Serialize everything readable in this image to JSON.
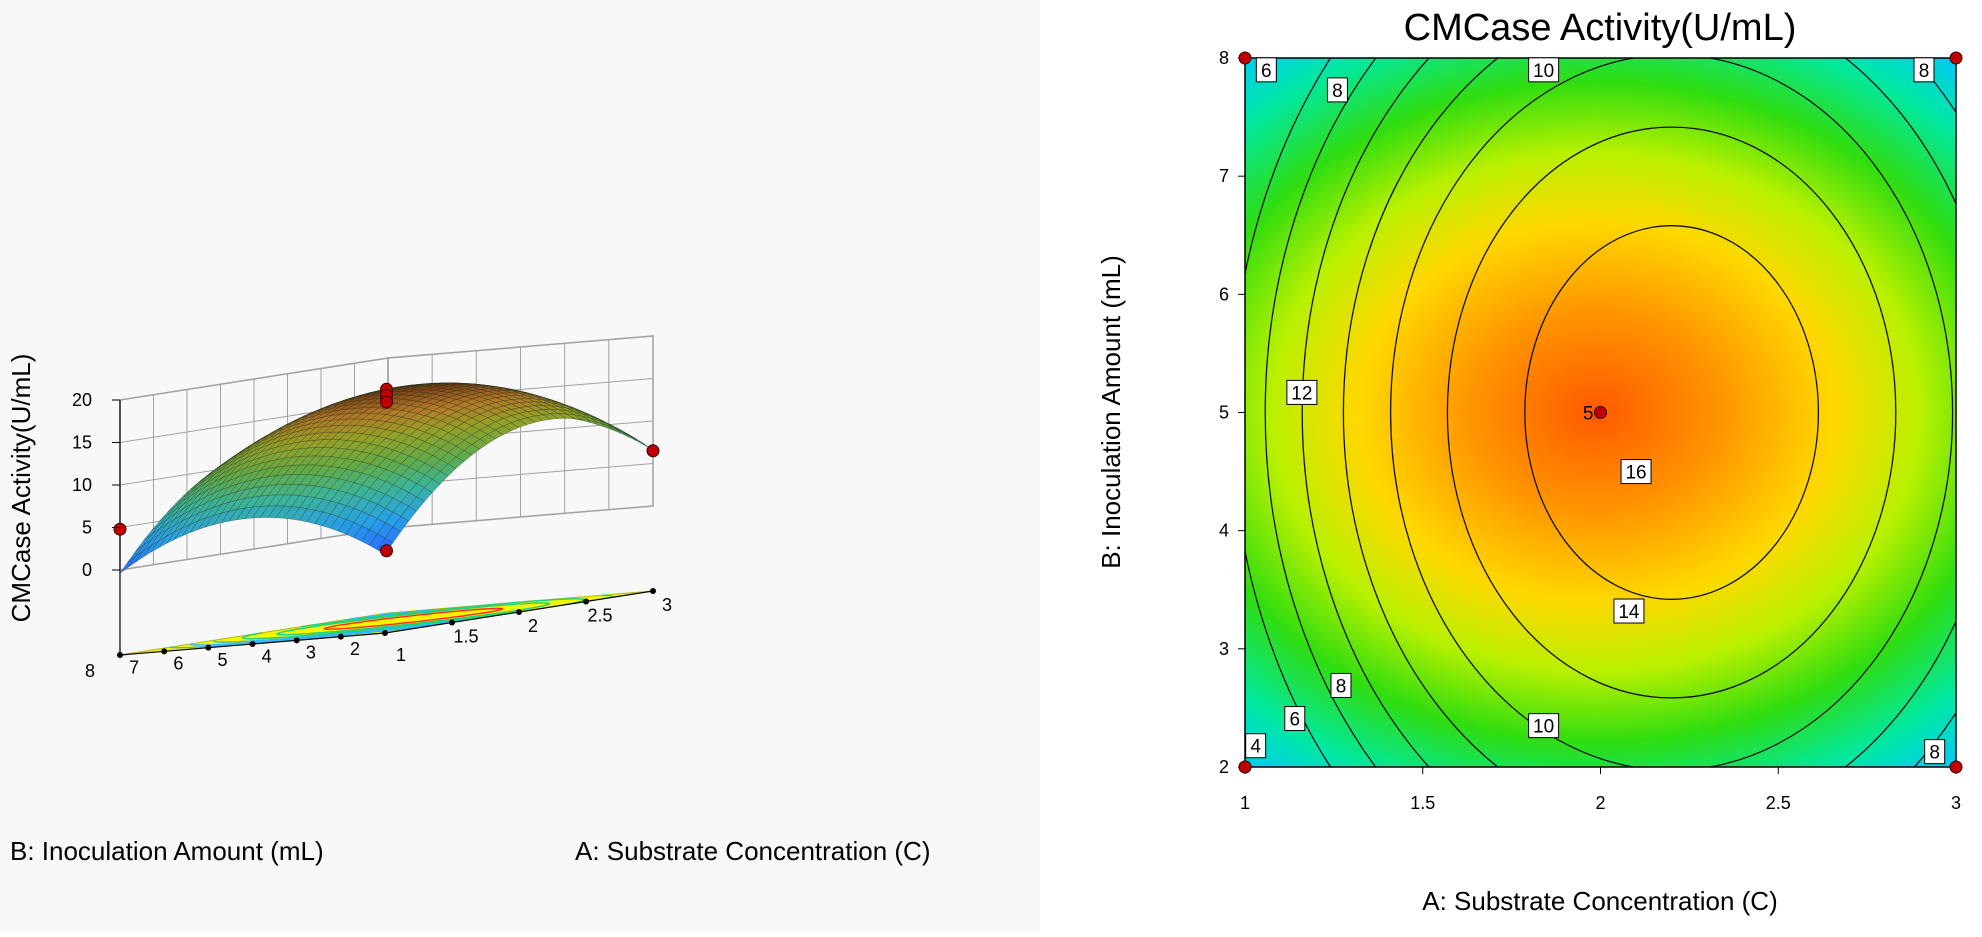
{
  "colors": {
    "background_left": "#f8f8f8",
    "grid_line": "#a0a0a0",
    "floor_fill": "#f6f500",
    "design_point": "#c00000",
    "contour_line": "#111111",
    "palette": [
      "#0050ff",
      "#00c8ff",
      "#00e070",
      "#40e000",
      "#e8ff00",
      "#ffb000",
      "#ff5a00"
    ]
  },
  "chart_data": [
    {
      "type": "surface",
      "title": "",
      "xlabel": "A: Substrate Concentration (C)",
      "ylabel": "B: Inoculation Amount (mL)",
      "zlabel": "CMCase Activity(U/mL)",
      "x_range": [
        1,
        3
      ],
      "y_range": [
        2,
        8
      ],
      "z_range": [
        0,
        20
      ],
      "x_ticks": [
        "1",
        "1.5",
        "2",
        "2.5",
        "3"
      ],
      "y_ticks": [
        "2",
        "3",
        "4",
        "5",
        "6",
        "7",
        "8"
      ],
      "z_ticks": [
        "0",
        "5",
        "10",
        "15",
        "20"
      ],
      "floor_contour_levels": [
        6,
        8,
        10,
        12,
        14,
        16
      ],
      "model": "quadratic response surface",
      "peak": {
        "x": 2.2,
        "y": 5.0,
        "z": 17.5
      },
      "design_points": [
        {
          "x": 2,
          "y": 5,
          "z": 17.5
        },
        {
          "x": 2,
          "y": 5,
          "z": 16.8
        },
        {
          "x": 2,
          "y": 5,
          "z": 16.0
        },
        {
          "x": 1,
          "y": 8,
          "z": 4.8
        },
        {
          "x": 3,
          "y": 2,
          "z": 6.5
        },
        {
          "x": 2,
          "y": 5,
          "z": -1.5
        }
      ]
    },
    {
      "type": "contour",
      "title": "CMCase Activity(U/mL)",
      "xlabel": "A: Substrate Concentration (C)",
      "ylabel": "B: Inoculation Amount (mL)",
      "x_range": [
        1,
        3
      ],
      "y_range": [
        2,
        8
      ],
      "x_ticks": [
        "1",
        "1.5",
        "2",
        "2.5",
        "3"
      ],
      "y_ticks": [
        "2",
        "3",
        "4",
        "5",
        "6",
        "7",
        "8"
      ],
      "contour_levels": [
        4,
        6,
        8,
        10,
        12,
        14,
        16
      ],
      "contour_labels": [
        {
          "text": "6",
          "x": 1.06,
          "y": 7.9
        },
        {
          "text": "8",
          "x": 1.26,
          "y": 7.73
        },
        {
          "text": "10",
          "x": 1.84,
          "y": 7.9
        },
        {
          "text": "8",
          "x": 2.91,
          "y": 7.9
        },
        {
          "text": "12",
          "x": 1.16,
          "y": 5.17
        },
        {
          "text": "16",
          "x": 2.1,
          "y": 4.5
        },
        {
          "text": "14",
          "x": 2.08,
          "y": 3.32
        },
        {
          "text": "8",
          "x": 1.27,
          "y": 2.69
        },
        {
          "text": "6",
          "x": 1.14,
          "y": 2.41
        },
        {
          "text": "10",
          "x": 1.84,
          "y": 2.35
        },
        {
          "text": "4",
          "x": 1.03,
          "y": 2.18
        },
        {
          "text": "8",
          "x": 2.94,
          "y": 2.13
        }
      ],
      "design_points": [
        {
          "x": 1,
          "y": 8
        },
        {
          "x": 3,
          "y": 8
        },
        {
          "x": 1,
          "y": 2
        },
        {
          "x": 3,
          "y": 2
        },
        {
          "x": 2,
          "y": 5,
          "label": "5"
        }
      ]
    }
  ]
}
